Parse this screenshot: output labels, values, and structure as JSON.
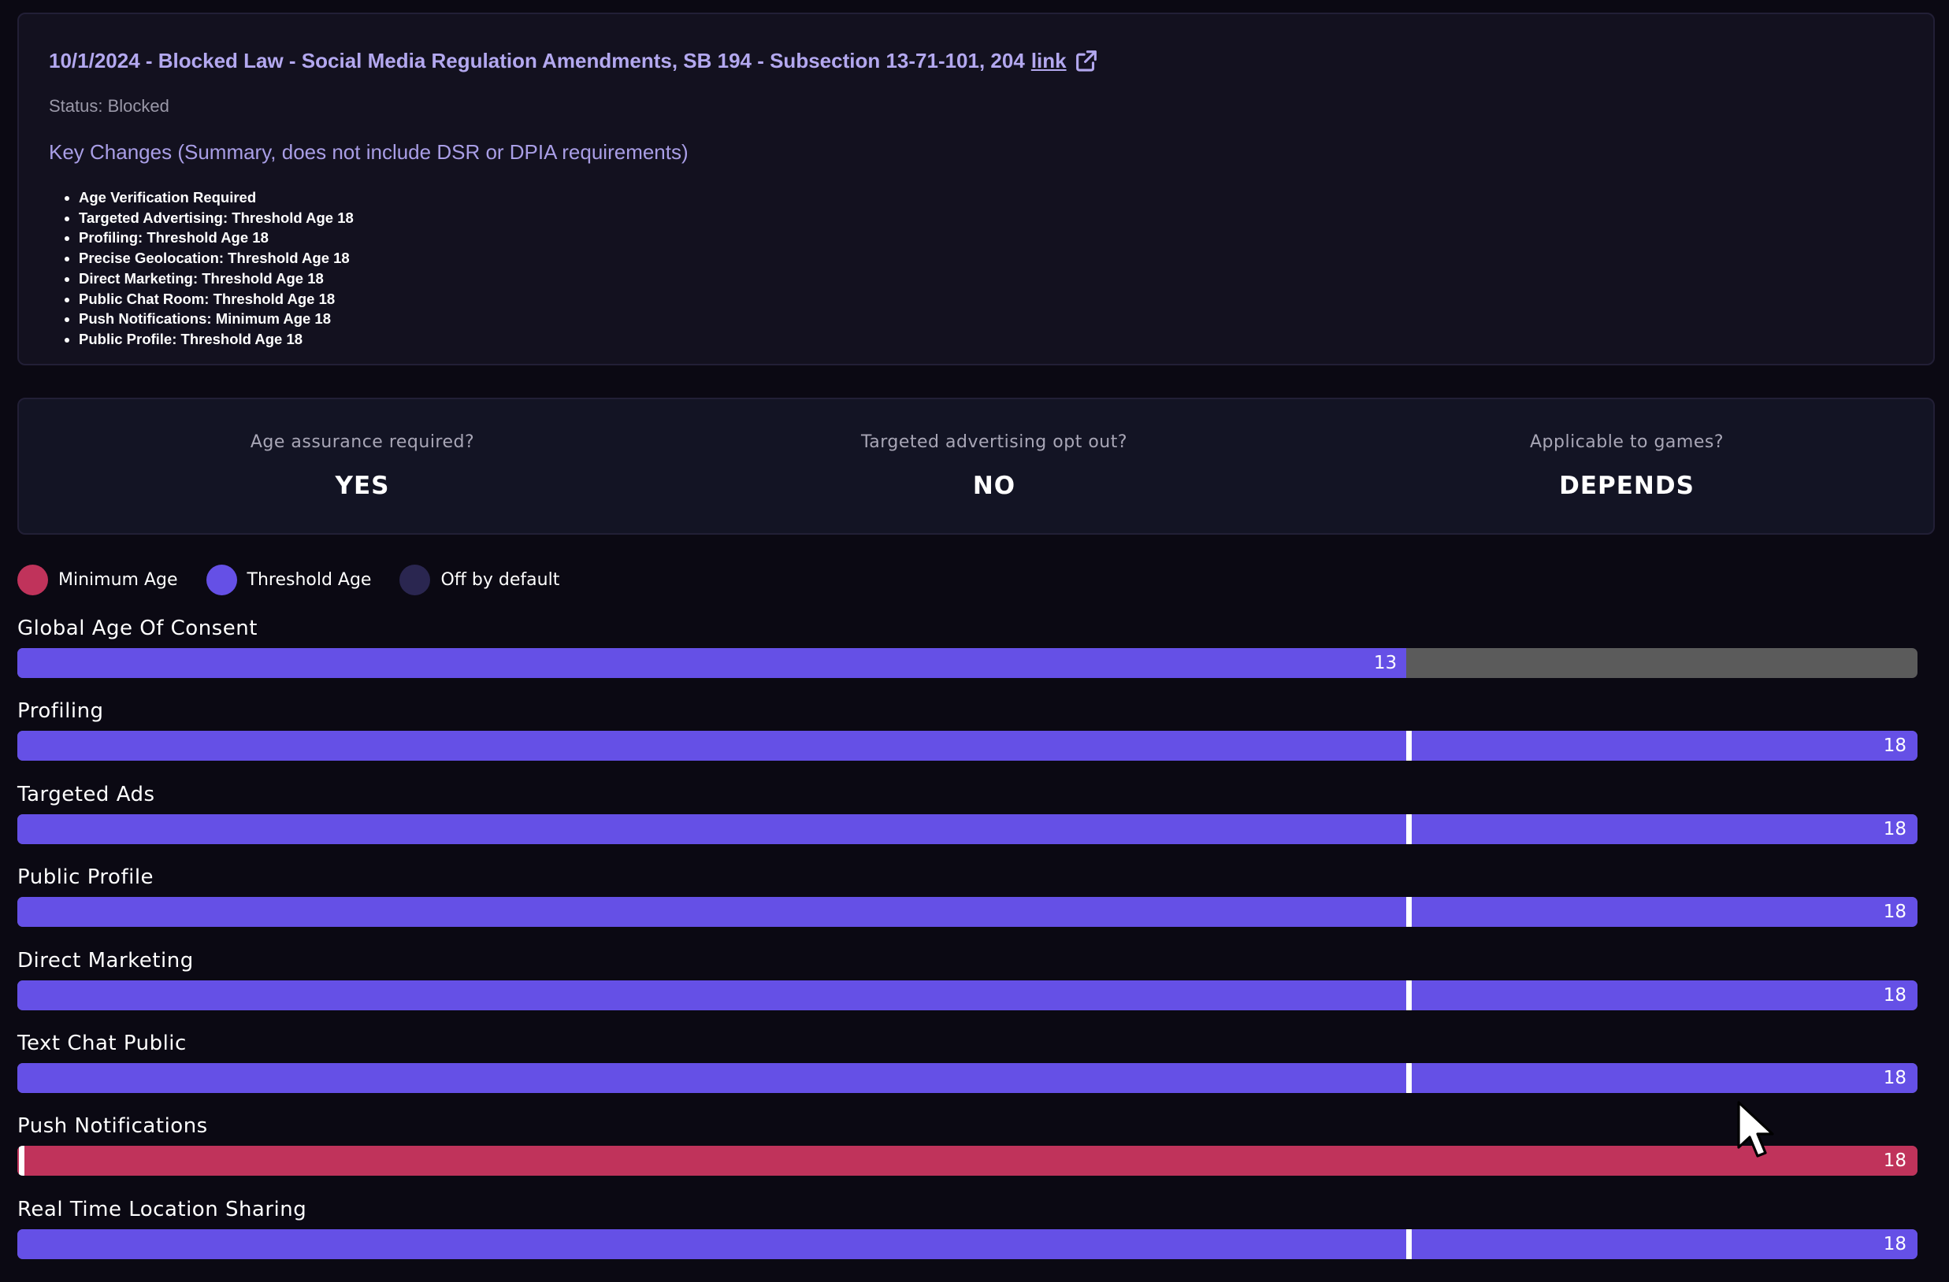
{
  "law": {
    "title": "10/1/2024 - Blocked Law - Social Media Regulation Amendments, SB 194 - Subsection 13-71-101, 204",
    "link_label": "link",
    "link_icon": "external-link-icon",
    "status": "Status: Blocked",
    "key_changes_heading": "Key Changes (Summary, does not include DSR or DPIA requirements)",
    "key_changes": [
      "Age Verification Required",
      "Targeted Advertising: Threshold Age 18",
      "Profiling: Threshold Age 18",
      "Precise Geolocation: Threshold Age 18",
      "Direct Marketing: Threshold Age 18",
      "Public Chat Room: Threshold Age 18",
      "Push Notifications: Minimum Age 18",
      "Public Profile: Threshold Age 18"
    ]
  },
  "summary": [
    {
      "question": "Age assurance required?",
      "answer": "YES"
    },
    {
      "question": "Targeted advertising opt out?",
      "answer": "NO"
    },
    {
      "question": "Applicable to games?",
      "answer": "DEPENDS"
    }
  ],
  "legend": [
    {
      "label": "Minimum Age",
      "color": "#c0335b"
    },
    {
      "label": "Threshold Age",
      "color": "#6550e6"
    },
    {
      "label": "Off by default",
      "color": "#2a2650"
    }
  ],
  "colors": {
    "threshold": "#6550e6",
    "minimum": "#c0335b",
    "track": "#5b5b5b",
    "accent_text": "#b3a8ef"
  },
  "scale_max_age": 18,
  "age_marker_fraction": 0.731,
  "bars": [
    {
      "label": "Global Age Of Consent",
      "age": 13,
      "value_label": "13",
      "kind": "threshold",
      "marker": false
    },
    {
      "label": "Profiling",
      "age": 18,
      "value_label": "18",
      "kind": "threshold",
      "marker": true
    },
    {
      "label": "Targeted Ads",
      "age": 18,
      "value_label": "18",
      "kind": "threshold",
      "marker": true
    },
    {
      "label": "Public Profile",
      "age": 18,
      "value_label": "18",
      "kind": "threshold",
      "marker": true
    },
    {
      "label": "Direct Marketing",
      "age": 18,
      "value_label": "18",
      "kind": "threshold",
      "marker": true
    },
    {
      "label": "Text Chat Public",
      "age": 18,
      "value_label": "18",
      "kind": "threshold",
      "marker": true
    },
    {
      "label": "Push Notifications",
      "age": 18,
      "value_label": "18",
      "kind": "minimum",
      "marker": true
    },
    {
      "label": "Real Time Location Sharing",
      "age": 18,
      "value_label": "18",
      "kind": "threshold",
      "marker": true
    }
  ]
}
